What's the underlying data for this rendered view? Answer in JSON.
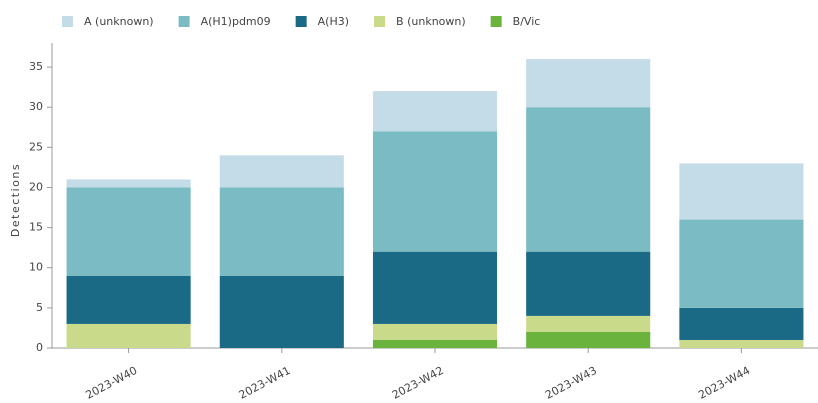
{
  "chart_data": {
    "type": "stacked_bar",
    "y_label": "Detections",
    "categories": [
      "2023-W40",
      "2023-W41",
      "2023-W42",
      "2023-W43",
      "2023-W44"
    ],
    "series": [
      {
        "name": "A (unknown)",
        "color": "#c4dbe8",
        "values": [
          1,
          4,
          5,
          6,
          7
        ]
      },
      {
        "name": "A(H1)pdm09",
        "color": "#7bbcc4",
        "values": [
          11,
          11,
          15,
          18,
          11
        ]
      },
      {
        "name": "A(H3)",
        "color": "#1a6985",
        "values": [
          6,
          9,
          9,
          8,
          4
        ]
      },
      {
        "name": "B (unknown)",
        "color": "#c9da8a",
        "values": [
          3,
          0,
          2,
          2,
          1
        ]
      },
      {
        "name": "B/Vic",
        "color": "#6ab43e",
        "values": [
          0,
          0,
          1,
          2,
          0
        ]
      }
    ],
    "ylim": [
      0,
      38
    ],
    "yticks": [
      0,
      5,
      10,
      15,
      20,
      25,
      30,
      35
    ],
    "grid": false,
    "legend": "top"
  }
}
